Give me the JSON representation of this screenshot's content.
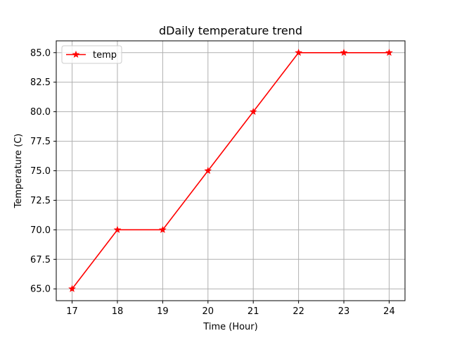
{
  "chart_data": {
    "type": "line",
    "title": "dDaily temperature trend",
    "xlabel": "Time (Hour)",
    "ylabel": "Temperature (C)",
    "x": [
      17,
      18,
      19,
      20,
      21,
      22,
      23,
      24
    ],
    "series": [
      {
        "name": "temp",
        "values": [
          65,
          70,
          70,
          75,
          80,
          85,
          85,
          85
        ],
        "color": "#ff0000",
        "marker": "star"
      }
    ],
    "xlim": [
      16.65,
      24.35
    ],
    "ylim": [
      64.0,
      86.0
    ],
    "xticks": [
      17,
      18,
      19,
      20,
      21,
      22,
      23,
      24
    ],
    "xtick_labels": [
      "17",
      "18",
      "19",
      "20",
      "21",
      "22",
      "23",
      "24"
    ],
    "yticks": [
      65.0,
      67.5,
      70.0,
      72.5,
      75.0,
      77.5,
      80.0,
      82.5,
      85.0
    ],
    "ytick_labels": [
      "65.0",
      "67.5",
      "70.0",
      "72.5",
      "75.0",
      "77.5",
      "80.0",
      "82.5",
      "85.0"
    ],
    "grid": true,
    "grid_color": "#b0b0b0",
    "legend_placement": "top-left"
  }
}
